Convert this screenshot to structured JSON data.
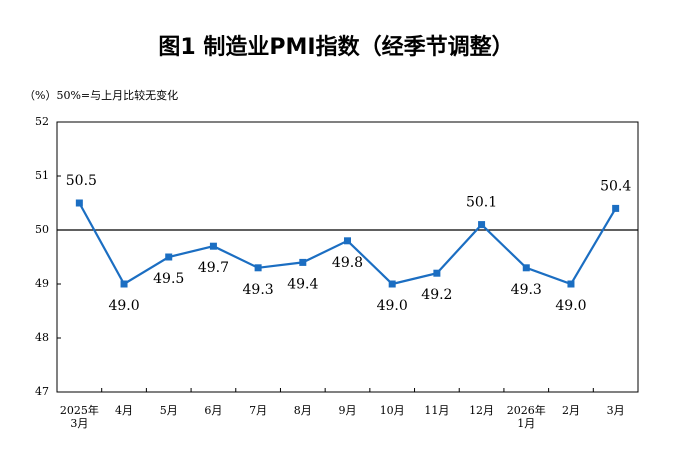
{
  "chart_data": {
    "type": "line",
    "title": "图1  制造业PMI指数（经季节调整）",
    "subtitle": "（%）50%=与上月比较无变化",
    "categories": [
      "2025年3月",
      "4月",
      "5月",
      "6月",
      "7月",
      "8月",
      "9月",
      "10月",
      "11月",
      "12月",
      "2026年1月",
      "2月",
      "3月"
    ],
    "series": [
      {
        "name": "制造业PMI",
        "color": "#1b6ec2",
        "values": [
          50.5,
          49.0,
          49.5,
          49.7,
          49.3,
          49.4,
          49.8,
          49.0,
          49.2,
          50.1,
          49.3,
          49.0,
          50.4
        ],
        "value_labels": [
          "50.5",
          "49.0",
          "49.5",
          "49.7",
          "49.3",
          "49.4",
          "49.8",
          "49.0",
          "49.2",
          "50.1",
          "49.3",
          "49.0",
          "50.4"
        ]
      }
    ],
    "ylim": [
      47,
      52
    ],
    "yticks": [
      47,
      48,
      49,
      50,
      51,
      52
    ],
    "reference_line": 50,
    "grid": false
  }
}
